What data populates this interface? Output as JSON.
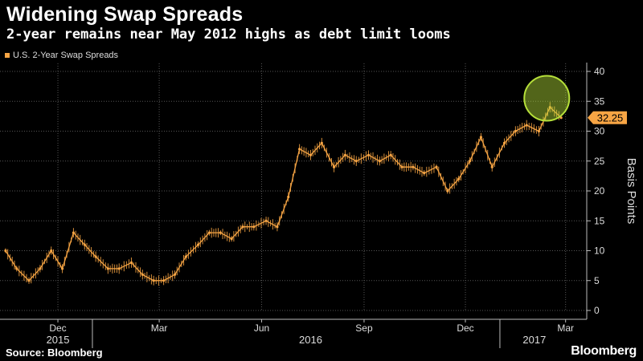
{
  "chart_data": {
    "type": "line",
    "title": "Widening Swap Spreads",
    "subtitle": "2-year remains near May 2012 highs as debt limit looms",
    "ylabel": "Basis Points",
    "ylim": [
      0,
      40
    ],
    "yticks": [
      0,
      5,
      10,
      15,
      20,
      25,
      30,
      35,
      40
    ],
    "grid": true,
    "legend_position": "top-left",
    "series": [
      {
        "name": "U.S. 2-Year Swap Spreads",
        "color": "#f7a544",
        "x": [
          "2015-10-15",
          "2015-10-25",
          "2015-11-05",
          "2015-11-15",
          "2015-11-25",
          "2015-12-05",
          "2015-12-15",
          "2015-12-25",
          "2016-01-04",
          "2016-01-15",
          "2016-01-25",
          "2016-02-05",
          "2016-02-15",
          "2016-02-25",
          "2016-03-05",
          "2016-03-15",
          "2016-03-25",
          "2016-04-05",
          "2016-04-15",
          "2016-04-25",
          "2016-05-05",
          "2016-05-15",
          "2016-05-25",
          "2016-06-05",
          "2016-06-15",
          "2016-06-25",
          "2016-07-05",
          "2016-07-15",
          "2016-07-25",
          "2016-08-05",
          "2016-08-15",
          "2016-08-25",
          "2016-09-05",
          "2016-09-15",
          "2016-09-25",
          "2016-10-05",
          "2016-10-15",
          "2016-10-25",
          "2016-11-05",
          "2016-11-15",
          "2016-11-25",
          "2016-12-05",
          "2016-12-15",
          "2016-12-25",
          "2017-01-05",
          "2017-01-15",
          "2017-01-25",
          "2017-02-05",
          "2017-02-15",
          "2017-02-25"
        ],
        "values": [
          10,
          7,
          5,
          7,
          10,
          7,
          13,
          11,
          9,
          7,
          7,
          8,
          6,
          5,
          5,
          6,
          9,
          11,
          13,
          13,
          12,
          14,
          14,
          15,
          14,
          19,
          27,
          26,
          28,
          24,
          26,
          25,
          26,
          25,
          26,
          24,
          24,
          23,
          24,
          20,
          22,
          25,
          29,
          24,
          28,
          30,
          31,
          30,
          34,
          32.25
        ]
      }
    ],
    "x_month_labels": [
      {
        "date": "2015-12-01",
        "label": "Dec"
      },
      {
        "date": "2016-03-01",
        "label": "Mar"
      },
      {
        "date": "2016-06-01",
        "label": "Jun"
      },
      {
        "date": "2016-09-01",
        "label": "Sep"
      },
      {
        "date": "2016-12-01",
        "label": "Dec"
      },
      {
        "date": "2017-03-01",
        "label": "Mar"
      }
    ],
    "x_year_labels": [
      {
        "date": "2015-12-01",
        "label": "2015"
      },
      {
        "date": "2016-07-15",
        "label": "2016"
      },
      {
        "date": "2017-02-01",
        "label": "2017"
      }
    ],
    "last_value_label": "32.25",
    "annotation": {
      "type": "circle",
      "from": "2017-02-05",
      "to": "2017-02-25",
      "color": "#b6e03a"
    }
  },
  "footer": {
    "source": "Source: Bloomberg",
    "brand": "Bloomberg"
  }
}
